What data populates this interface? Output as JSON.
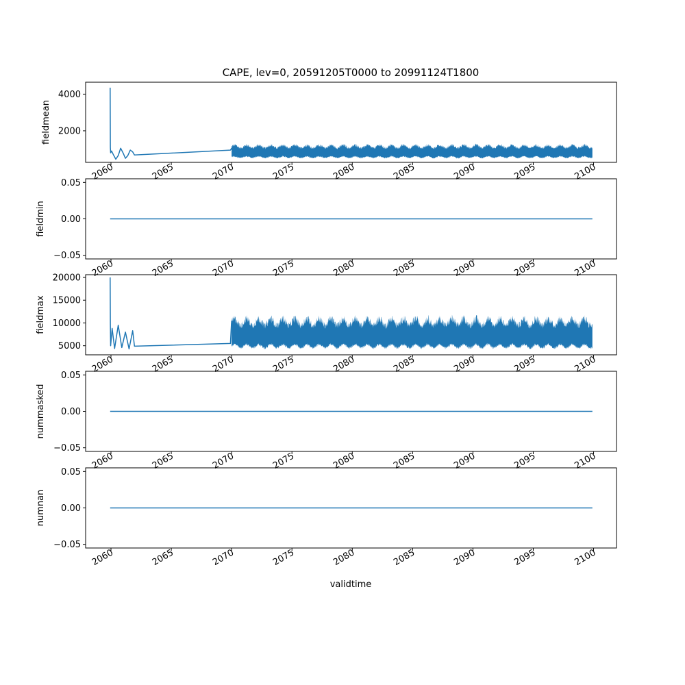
{
  "figure": {
    "title": "CAPE, lev=0, 20591205T0000 to 20991124T1800",
    "xlabel": "validtime"
  },
  "colors": {
    "series": "#1f77b4",
    "axes": "#000000"
  },
  "chart_data": [
    {
      "type": "line",
      "ylabel": "fieldmean",
      "ylim": [
        280,
        4650
      ],
      "yticks": [
        4000,
        2000
      ],
      "yticklabels": [
        "4000",
        "2000"
      ],
      "xlim": [
        2057.9,
        2101.9
      ],
      "x": [
        2059.93,
        2059.95,
        2059.97,
        2060.05,
        2060.2,
        2060.4,
        2060.6,
        2060.8,
        2061.0,
        2061.2,
        2061.4,
        2061.6,
        2061.8,
        2061.95,
        2069.9,
        2070.0,
        2070.15,
        2070.3,
        2070.5
      ],
      "values": [
        4350,
        1100,
        800,
        900,
        700,
        450,
        650,
        1050,
        800,
        500,
        650,
        950,
        850,
        680,
        950,
        1050,
        800,
        600,
        900
      ],
      "band": {
        "x_start": 2070.0,
        "x_end": 2099.9,
        "period": 1.0,
        "low": [
          480,
          560
        ],
        "high": [
          1050,
          1300
        ]
      }
    },
    {
      "type": "line",
      "ylabel": "fieldmin",
      "ylim": [
        -0.055,
        0.055
      ],
      "yticks": [
        0.05,
        0.0,
        -0.05
      ],
      "yticklabels": [
        "0.05",
        "0.00",
        "−0.05"
      ],
      "xlim": [
        2057.9,
        2101.9
      ],
      "x": [
        2059.93,
        2099.9
      ],
      "values": [
        0.0,
        0.0
      ]
    },
    {
      "type": "line",
      "ylabel": "fieldmax",
      "ylim": [
        3000,
        20600
      ],
      "yticks": [
        20000,
        15000,
        10000,
        5000
      ],
      "yticklabels": [
        "20000",
        "15000",
        "10000",
        "5000"
      ],
      "xlim": [
        2057.9,
        2101.9
      ],
      "x": [
        2059.93,
        2059.95,
        2059.97,
        2060.1,
        2060.3,
        2060.6,
        2060.9,
        2061.2,
        2061.5,
        2061.8,
        2061.95,
        2069.9,
        2070.0
      ],
      "values": [
        20000,
        9800,
        5000,
        8800,
        4400,
        9500,
        4600,
        8000,
        4300,
        8300,
        4900,
        5500,
        10500
      ],
      "band": {
        "x_start": 2070.0,
        "x_end": 2099.9,
        "period": 1.0,
        "low": [
          4200,
          4800
        ],
        "high": [
          9000,
          11800
        ]
      }
    },
    {
      "type": "line",
      "ylabel": "nummasked",
      "ylim": [
        -0.055,
        0.055
      ],
      "yticks": [
        0.05,
        0.0,
        -0.05
      ],
      "yticklabels": [
        "0.05",
        "0.00",
        "−0.05"
      ],
      "xlim": [
        2057.9,
        2101.9
      ],
      "x": [
        2059.93,
        2099.9
      ],
      "values": [
        0.0,
        0.0
      ]
    },
    {
      "type": "line",
      "ylabel": "numnan",
      "ylim": [
        -0.055,
        0.055
      ],
      "yticks": [
        0.05,
        0.0,
        -0.05
      ],
      "yticklabels": [
        "0.05",
        "0.00",
        "−0.05"
      ],
      "xlim": [
        2057.9,
        2101.9
      ],
      "x": [
        2059.93,
        2099.9
      ],
      "values": [
        0.0,
        0.0
      ]
    }
  ],
  "xticks": [
    2060,
    2065,
    2070,
    2075,
    2080,
    2085,
    2090,
    2095,
    2100
  ],
  "xticklabels": [
    "2060",
    "2065",
    "2070",
    "2075",
    "2080",
    "2085",
    "2090",
    "2095",
    "2100"
  ]
}
